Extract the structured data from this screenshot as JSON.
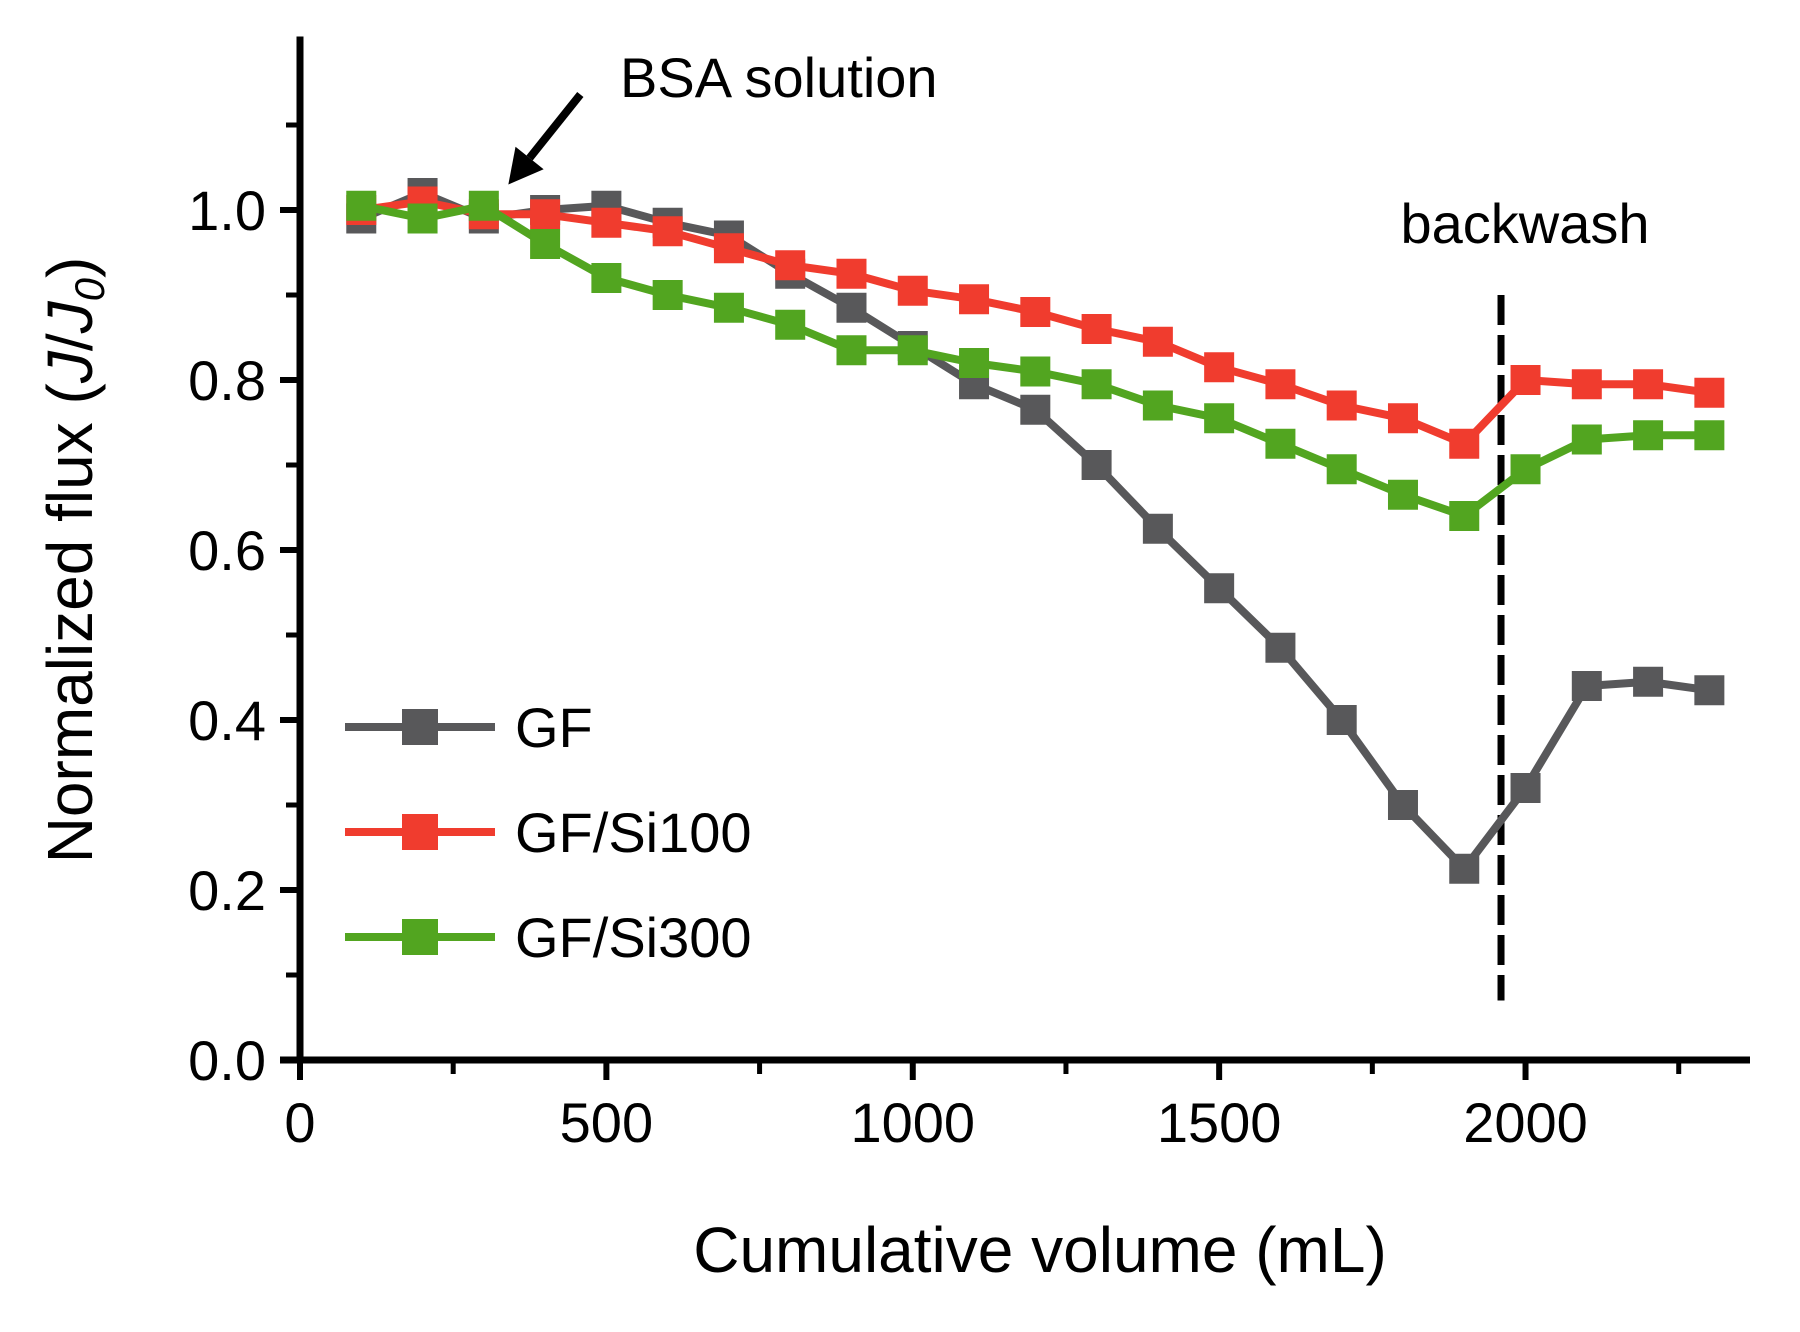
{
  "chart_data": {
    "type": "line",
    "title": "",
    "xlabel": "Cumulative volume (mL)",
    "ylabel": {
      "prefix": "Normalized flux (",
      "j": "J",
      "slash": "/",
      "j0": "J",
      "j0_sub": "0",
      "suffix": ")"
    },
    "xlim": [
      0,
      2350
    ],
    "ylim": [
      0,
      1.2
    ],
    "xticks": [
      0,
      500,
      1000,
      1500,
      2000
    ],
    "xtick_labels": [
      "0",
      "500",
      "1000",
      "1500",
      "2000"
    ],
    "yticks": [
      0.0,
      0.2,
      0.4,
      0.6,
      0.8,
      1.0
    ],
    "ytick_labels": [
      "0.0",
      "0.2",
      "0.4",
      "0.6",
      "0.8",
      "1.0"
    ],
    "x": [
      100,
      200,
      300,
      400,
      500,
      600,
      700,
      800,
      900,
      1000,
      1100,
      1200,
      1300,
      1400,
      1500,
      1600,
      1700,
      1800,
      1900,
      2000,
      2100,
      2200,
      2300
    ],
    "series": [
      {
        "name": "GF",
        "color": "#58585a",
        "values": [
          0.99,
          1.02,
          0.99,
          1.0,
          1.005,
          0.985,
          0.97,
          0.925,
          0.885,
          0.84,
          0.795,
          0.765,
          0.7,
          0.625,
          0.555,
          0.485,
          0.4,
          0.3,
          0.225,
          0.32,
          0.44,
          0.445,
          0.435
        ]
      },
      {
        "name": "GF/Si100",
        "color": "#f03c2e",
        "values": [
          1.0,
          1.01,
          0.995,
          0.995,
          0.985,
          0.975,
          0.955,
          0.935,
          0.925,
          0.905,
          0.895,
          0.88,
          0.86,
          0.845,
          0.815,
          0.795,
          0.77,
          0.755,
          0.725,
          0.8,
          0.795,
          0.795,
          0.785
        ]
      },
      {
        "name": "GF/Si300",
        "color": "#52a520",
        "values": [
          1.005,
          0.99,
          1.005,
          0.96,
          0.92,
          0.9,
          0.885,
          0.865,
          0.835,
          0.835,
          0.82,
          0.81,
          0.795,
          0.77,
          0.755,
          0.725,
          0.695,
          0.665,
          0.64,
          0.695,
          0.73,
          0.735,
          0.735
        ]
      }
    ],
    "legend_position": "bottom-left",
    "annotations": [
      {
        "text": "BSA solution",
        "type": "arrow",
        "points_to": [
          340,
          1.03
        ]
      },
      {
        "text": "backwash",
        "type": "vline",
        "x": 1960,
        "y_range": [
          0.07,
          0.9
        ]
      }
    ],
    "grid": false
  }
}
